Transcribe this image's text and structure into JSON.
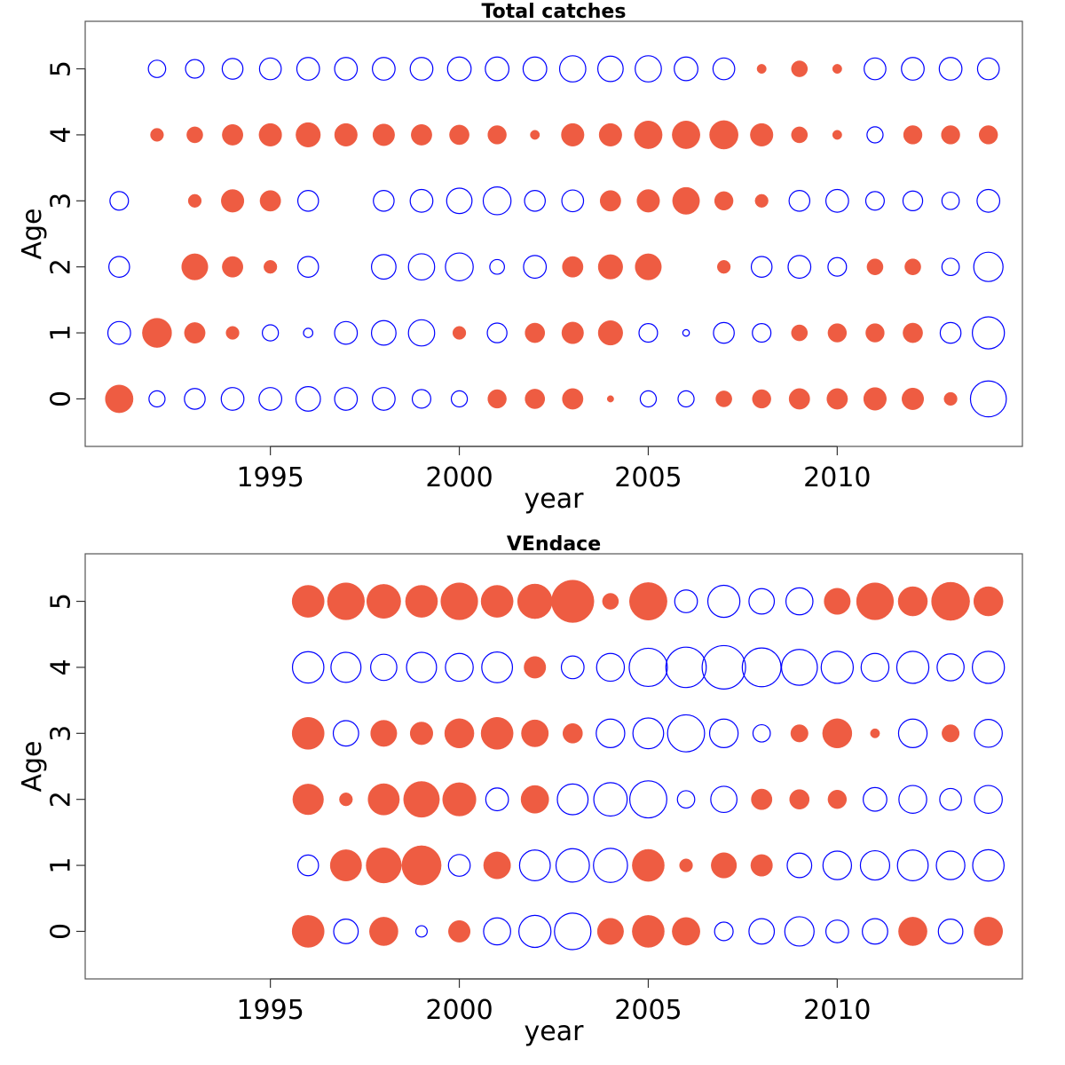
{
  "chart_data": [
    {
      "type": "scatter",
      "subtype": "bubble",
      "title": "Total catches",
      "xlabel": "year",
      "ylabel": "Age",
      "x_ticks": [
        1995,
        2000,
        2005,
        2010
      ],
      "y_ticks": [
        0,
        1,
        2,
        3,
        4,
        5
      ],
      "xlim": [
        1990.1,
        2014.9
      ],
      "ylim": [
        -0.72,
        5.72
      ],
      "grid": false,
      "legend": "none",
      "colors": {
        "positive": "#EE5C42",
        "negative": "#0000FF"
      },
      "encoding": "bubble area ~ |residual|; filled = positive, open = negative",
      "years": [
        1991,
        1992,
        1993,
        1994,
        1995,
        1996,
        1997,
        1998,
        1999,
        2000,
        2001,
        2002,
        2003,
        2004,
        2005,
        2006,
        2007,
        2008,
        2009,
        2010,
        2011,
        2012,
        2013,
        2014
      ],
      "ages": [
        0,
        1,
        2,
        3,
        4,
        5
      ],
      "residuals": [
        [
          0.9,
          -0.3,
          -0.5,
          -0.6,
          -0.6,
          -0.7,
          -0.6,
          -0.6,
          -0.4,
          -0.3,
          0.4,
          0.45,
          0.5,
          0.05,
          -0.3,
          -0.3,
          0.3,
          0.4,
          0.5,
          0.5,
          0.6,
          0.55,
          0.2,
          -1.5
        ],
        [
          -0.6,
          1.0,
          0.5,
          0.2,
          -0.3,
          -0.1,
          -0.6,
          -0.7,
          -0.8,
          0.2,
          -0.45,
          0.45,
          0.55,
          0.7,
          -0.4,
          -0.05,
          -0.5,
          -0.4,
          0.3,
          0.4,
          0.4,
          0.45,
          -0.5,
          -1.2
        ],
        [
          -0.5,
          null,
          0.8,
          0.5,
          0.2,
          -0.5,
          null,
          -0.7,
          -0.8,
          -0.9,
          -0.25,
          -0.6,
          0.5,
          0.7,
          0.8,
          null,
          0.2,
          -0.5,
          -0.6,
          -0.4,
          0.3,
          0.3,
          -0.35,
          -1.0
        ],
        [
          -0.4,
          null,
          0.2,
          0.6,
          0.5,
          -0.5,
          null,
          -0.5,
          -0.6,
          -0.75,
          -0.9,
          -0.5,
          -0.55,
          0.5,
          0.6,
          0.85,
          0.4,
          0.2,
          -0.5,
          -0.6,
          -0.4,
          -0.45,
          -0.35,
          -0.6
        ],
        [
          null,
          0.2,
          0.3,
          0.5,
          0.6,
          0.7,
          0.6,
          0.55,
          0.5,
          0.45,
          0.4,
          0.1,
          0.6,
          0.6,
          0.9,
          0.9,
          0.95,
          0.6,
          0.3,
          0.1,
          -0.3,
          0.4,
          0.4,
          0.4
        ],
        [
          null,
          -0.35,
          -0.4,
          -0.5,
          -0.55,
          -0.6,
          -0.6,
          -0.6,
          -0.6,
          -0.65,
          -0.65,
          -0.65,
          -0.8,
          -0.75,
          -0.8,
          -0.65,
          -0.55,
          0.1,
          0.3,
          0.1,
          -0.55,
          -0.6,
          -0.6,
          -0.55
        ]
      ]
    },
    {
      "type": "scatter",
      "subtype": "bubble",
      "title": "VEndace",
      "xlabel": "year",
      "ylabel": "Age",
      "x_ticks": [
        1995,
        2000,
        2005,
        2010
      ],
      "y_ticks": [
        0,
        1,
        2,
        3,
        4,
        5
      ],
      "xlim": [
        1990.1,
        2014.9
      ],
      "ylim": [
        -0.72,
        5.72
      ],
      "grid": false,
      "legend": "none",
      "colors": {
        "positive": "#EE5C42",
        "negative": "#0000FF"
      },
      "encoding": "bubble area ~ |residual|; filled = positive, open = negative",
      "years": [
        1996,
        1997,
        1998,
        1999,
        2000,
        2001,
        2002,
        2003,
        2004,
        2005,
        2006,
        2007,
        2008,
        2009,
        2010,
        2011,
        2012,
        2013,
        2014
      ],
      "ages": [
        0,
        1,
        2,
        3,
        4,
        5
      ],
      "residuals": [
        [
          1.2,
          -0.7,
          0.95,
          -0.15,
          0.55,
          -0.85,
          -1.2,
          -1.55,
          0.8,
          1.2,
          0.9,
          -0.4,
          -0.75,
          -1.0,
          -0.6,
          -0.75,
          0.95,
          -0.7,
          0.95
        ],
        [
          -0.5,
          1.15,
          1.45,
          1.8,
          -0.55,
          0.85,
          -1.1,
          -1.3,
          -1.35,
          1.2,
          0.2,
          0.75,
          0.55,
          -0.7,
          -0.95,
          -1.0,
          -1.1,
          -0.95,
          -1.15
        ],
        [
          1.1,
          0.2,
          1.15,
          1.5,
          1.3,
          -0.6,
          0.9,
          -1.1,
          -1.3,
          -1.6,
          -0.35,
          -0.8,
          0.5,
          0.45,
          0.4,
          -0.65,
          -0.9,
          -0.55,
          -0.9
        ],
        [
          1.2,
          -0.75,
          0.8,
          0.6,
          1.0,
          1.2,
          0.85,
          0.45,
          -0.95,
          -1.1,
          -1.6,
          -0.95,
          -0.35,
          0.35,
          1.0,
          0.1,
          -0.95,
          0.35,
          -0.9
        ],
        [
          -1.15,
          -1.05,
          -0.8,
          -1.05,
          -0.9,
          -1.1,
          0.55,
          -0.6,
          -0.9,
          -1.7,
          -1.9,
          -2.2,
          -1.75,
          -1.5,
          -1.2,
          -0.9,
          -1.2,
          -0.85,
          -1.2
        ],
        [
          1.2,
          1.6,
          1.35,
          1.2,
          1.6,
          1.2,
          1.4,
          2.1,
          0.3,
          1.65,
          -0.6,
          -1.2,
          -0.75,
          -0.85,
          0.8,
          1.6,
          1.0,
          1.7,
          1.0
        ]
      ]
    }
  ]
}
